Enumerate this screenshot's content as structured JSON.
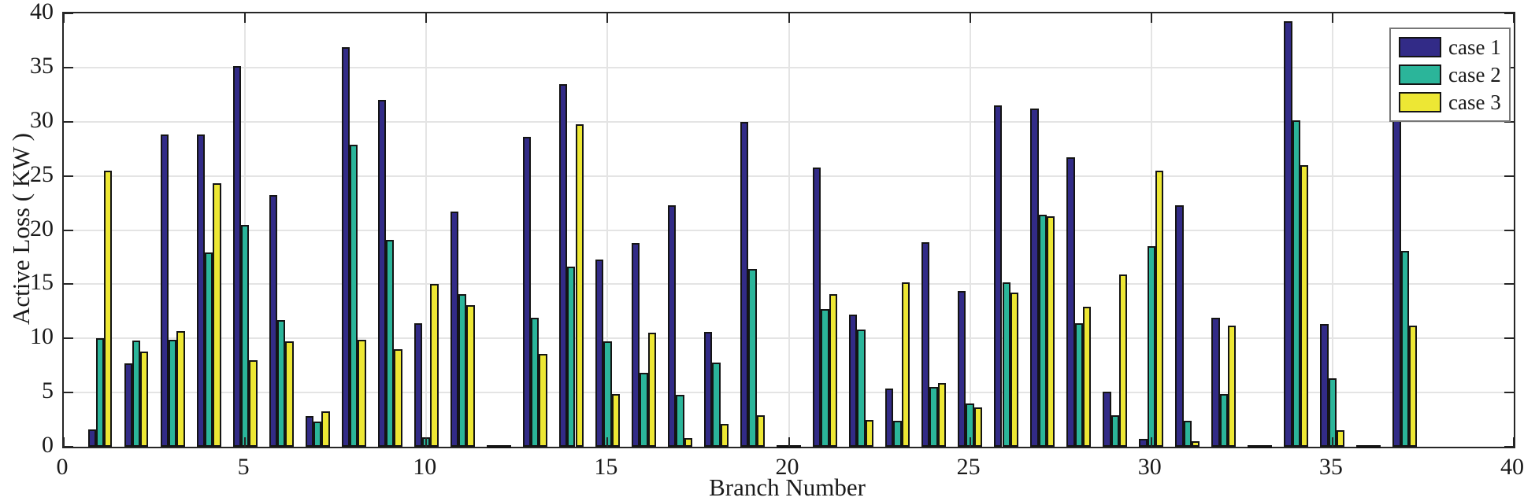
{
  "figure": {
    "background": "#ffffff"
  },
  "axes": {
    "x_title": "Branch Number",
    "y_title": "Active Loss ( KW )"
  },
  "legend": {
    "entries": [
      {
        "label": "case 1"
      },
      {
        "label": "case 2"
      },
      {
        "label": "case 3"
      }
    ]
  },
  "colors": {
    "case1": "#322B87",
    "case2": "#2BB59A",
    "case3": "#EDE734",
    "bar_edge": "#141414",
    "grid": "#e4e4e4",
    "frame": "#262626",
    "text": "#1a1a1a"
  },
  "chart_data": {
    "type": "bar",
    "title": "",
    "xlabel": "Branch Number",
    "ylabel": "Active Loss ( KW )",
    "xlim": [
      0,
      40
    ],
    "ylim": [
      0,
      40
    ],
    "x_ticks": [
      0,
      5,
      10,
      15,
      20,
      25,
      30,
      35,
      40
    ],
    "y_ticks": [
      0,
      5,
      10,
      15,
      20,
      25,
      30,
      35,
      40
    ],
    "grid": true,
    "legend_position": "top-right",
    "categories": [
      1,
      2,
      3,
      4,
      5,
      6,
      7,
      8,
      9,
      10,
      11,
      12,
      13,
      14,
      15,
      16,
      17,
      18,
      19,
      20,
      21,
      22,
      23,
      24,
      25,
      26,
      27,
      28,
      29,
      30,
      31,
      32,
      33,
      34,
      35,
      36,
      37
    ],
    "series": [
      {
        "name": "case 1",
        "color": "#322B87",
        "values": [
          1.6,
          7.7,
          28.8,
          28.8,
          35.1,
          23.2,
          2.8,
          36.9,
          32.0,
          11.4,
          21.7,
          0.1,
          28.6,
          33.5,
          17.3,
          18.8,
          22.3,
          10.6,
          30.0,
          0.1,
          25.8,
          12.2,
          5.4,
          18.9,
          14.4,
          31.5,
          31.2,
          26.7,
          5.1,
          0.7,
          22.3,
          11.9,
          0.1,
          39.3,
          11.3,
          0.1,
          33.0
        ]
      },
      {
        "name": "case 2",
        "color": "#2BB59A",
        "values": [
          10.0,
          9.8,
          9.9,
          17.9,
          20.5,
          11.7,
          2.3,
          27.9,
          19.1,
          0.9,
          14.1,
          0.1,
          11.9,
          16.6,
          9.7,
          6.8,
          4.8,
          7.8,
          16.4,
          0.1,
          12.7,
          10.8,
          2.4,
          5.5,
          4.0,
          15.2,
          21.4,
          11.4,
          2.9,
          18.5,
          2.4,
          4.9,
          0.1,
          30.1,
          6.3,
          0.1,
          18.1
        ]
      },
      {
        "name": "case 3",
        "color": "#EDE734",
        "values": [
          25.5,
          8.8,
          10.7,
          24.3,
          8.0,
          9.7,
          3.3,
          9.9,
          9.0,
          15.0,
          13.1,
          0.1,
          8.6,
          29.8,
          4.9,
          10.5,
          0.8,
          2.1,
          2.9,
          0.1,
          14.1,
          2.5,
          15.2,
          5.9,
          3.6,
          14.2,
          21.3,
          12.9,
          15.9,
          25.5,
          0.5,
          11.2,
          0.1,
          26.0,
          1.5,
          0.1,
          11.2
        ]
      }
    ]
  }
}
